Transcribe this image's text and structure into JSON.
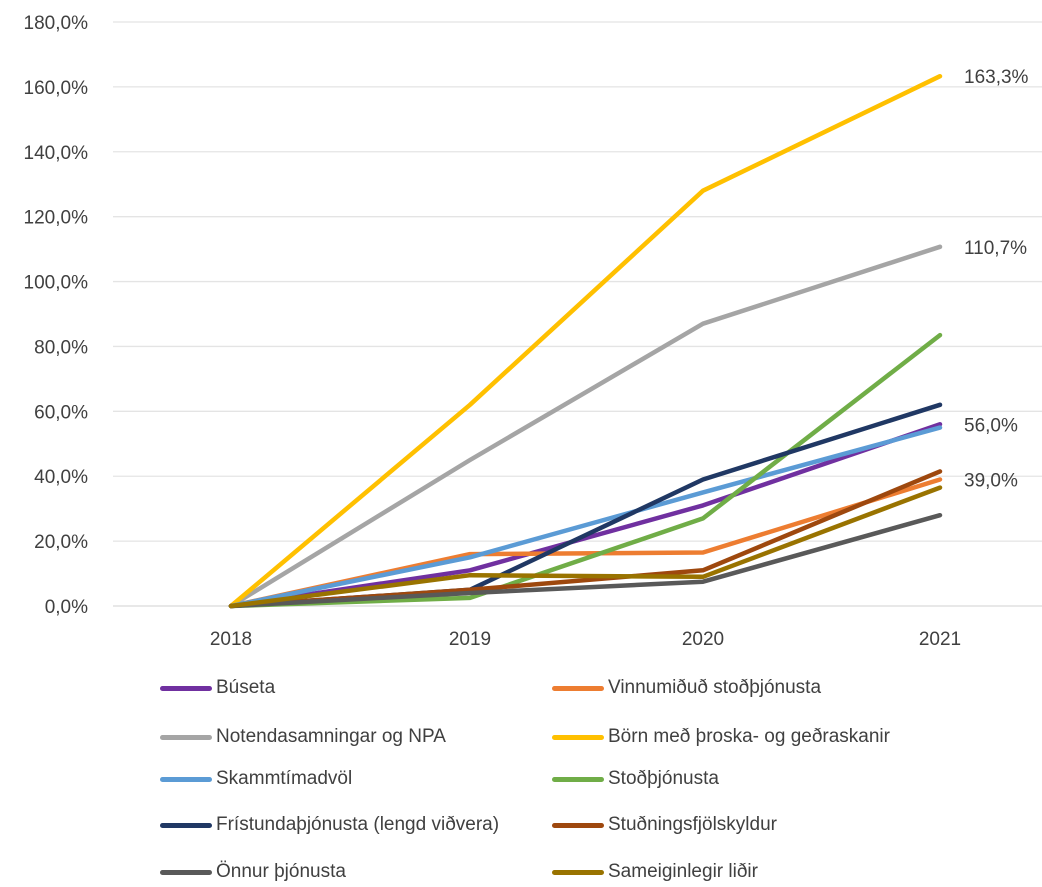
{
  "chart_data": {
    "type": "line",
    "title": "",
    "xlabel": "",
    "ylabel": "",
    "x": [
      "2018",
      "2019",
      "2020",
      "2021"
    ],
    "ylim": [
      0,
      180
    ],
    "yticks": [
      "0,0%",
      "20,0%",
      "40,0%",
      "60,0%",
      "80,0%",
      "100,0%",
      "120,0%",
      "140,0%",
      "160,0%",
      "180,0%"
    ],
    "grid": true,
    "legend_position": "bottom",
    "series": [
      {
        "name": "Búseta",
        "color": "#7030a0",
        "values": [
          0,
          11,
          31,
          56
        ]
      },
      {
        "name": "Vinnumiðuð stoðþjónusta",
        "color": "#ed7d31",
        "values": [
          0,
          16,
          16.5,
          39
        ]
      },
      {
        "name": "Notendasamningar og NPA",
        "color": "#a5a5a5",
        "values": [
          0,
          45,
          87,
          110.7
        ]
      },
      {
        "name": "Börn með þroska- og geðraskanir",
        "color": "#ffc000",
        "values": [
          0,
          62,
          128,
          163.3
        ]
      },
      {
        "name": "Skammtímadvöl",
        "color": "#5b9bd5",
        "values": [
          0,
          15,
          35,
          55
        ]
      },
      {
        "name": "Stoðþjónusta",
        "color": "#70ad47",
        "values": [
          0,
          2.5,
          27,
          83.5
        ]
      },
      {
        "name": "Frístundaþjónusta (lengd viðvera)",
        "color": "#203864",
        "values": [
          0,
          5,
          39,
          62
        ]
      },
      {
        "name": "Stuðningsfjölskyldur",
        "color": "#9e480e",
        "values": [
          0,
          5,
          11,
          41.5
        ]
      },
      {
        "name": "Önnur þjónusta",
        "color": "#595959",
        "values": [
          0,
          4,
          7.5,
          28
        ]
      },
      {
        "name": "Sameiginlegir liðir",
        "color": "#997300",
        "values": [
          0,
          9.5,
          9,
          36.5
        ]
      }
    ],
    "data_labels": [
      {
        "text": "163,3%",
        "x": "2021",
        "y": 163.3
      },
      {
        "text": "110,7%",
        "x": "2021",
        "y": 110.7
      },
      {
        "text": "56,0%",
        "x": "2021",
        "y": 56
      },
      {
        "text": "39,0%",
        "x": "2021",
        "y": 39
      }
    ]
  }
}
